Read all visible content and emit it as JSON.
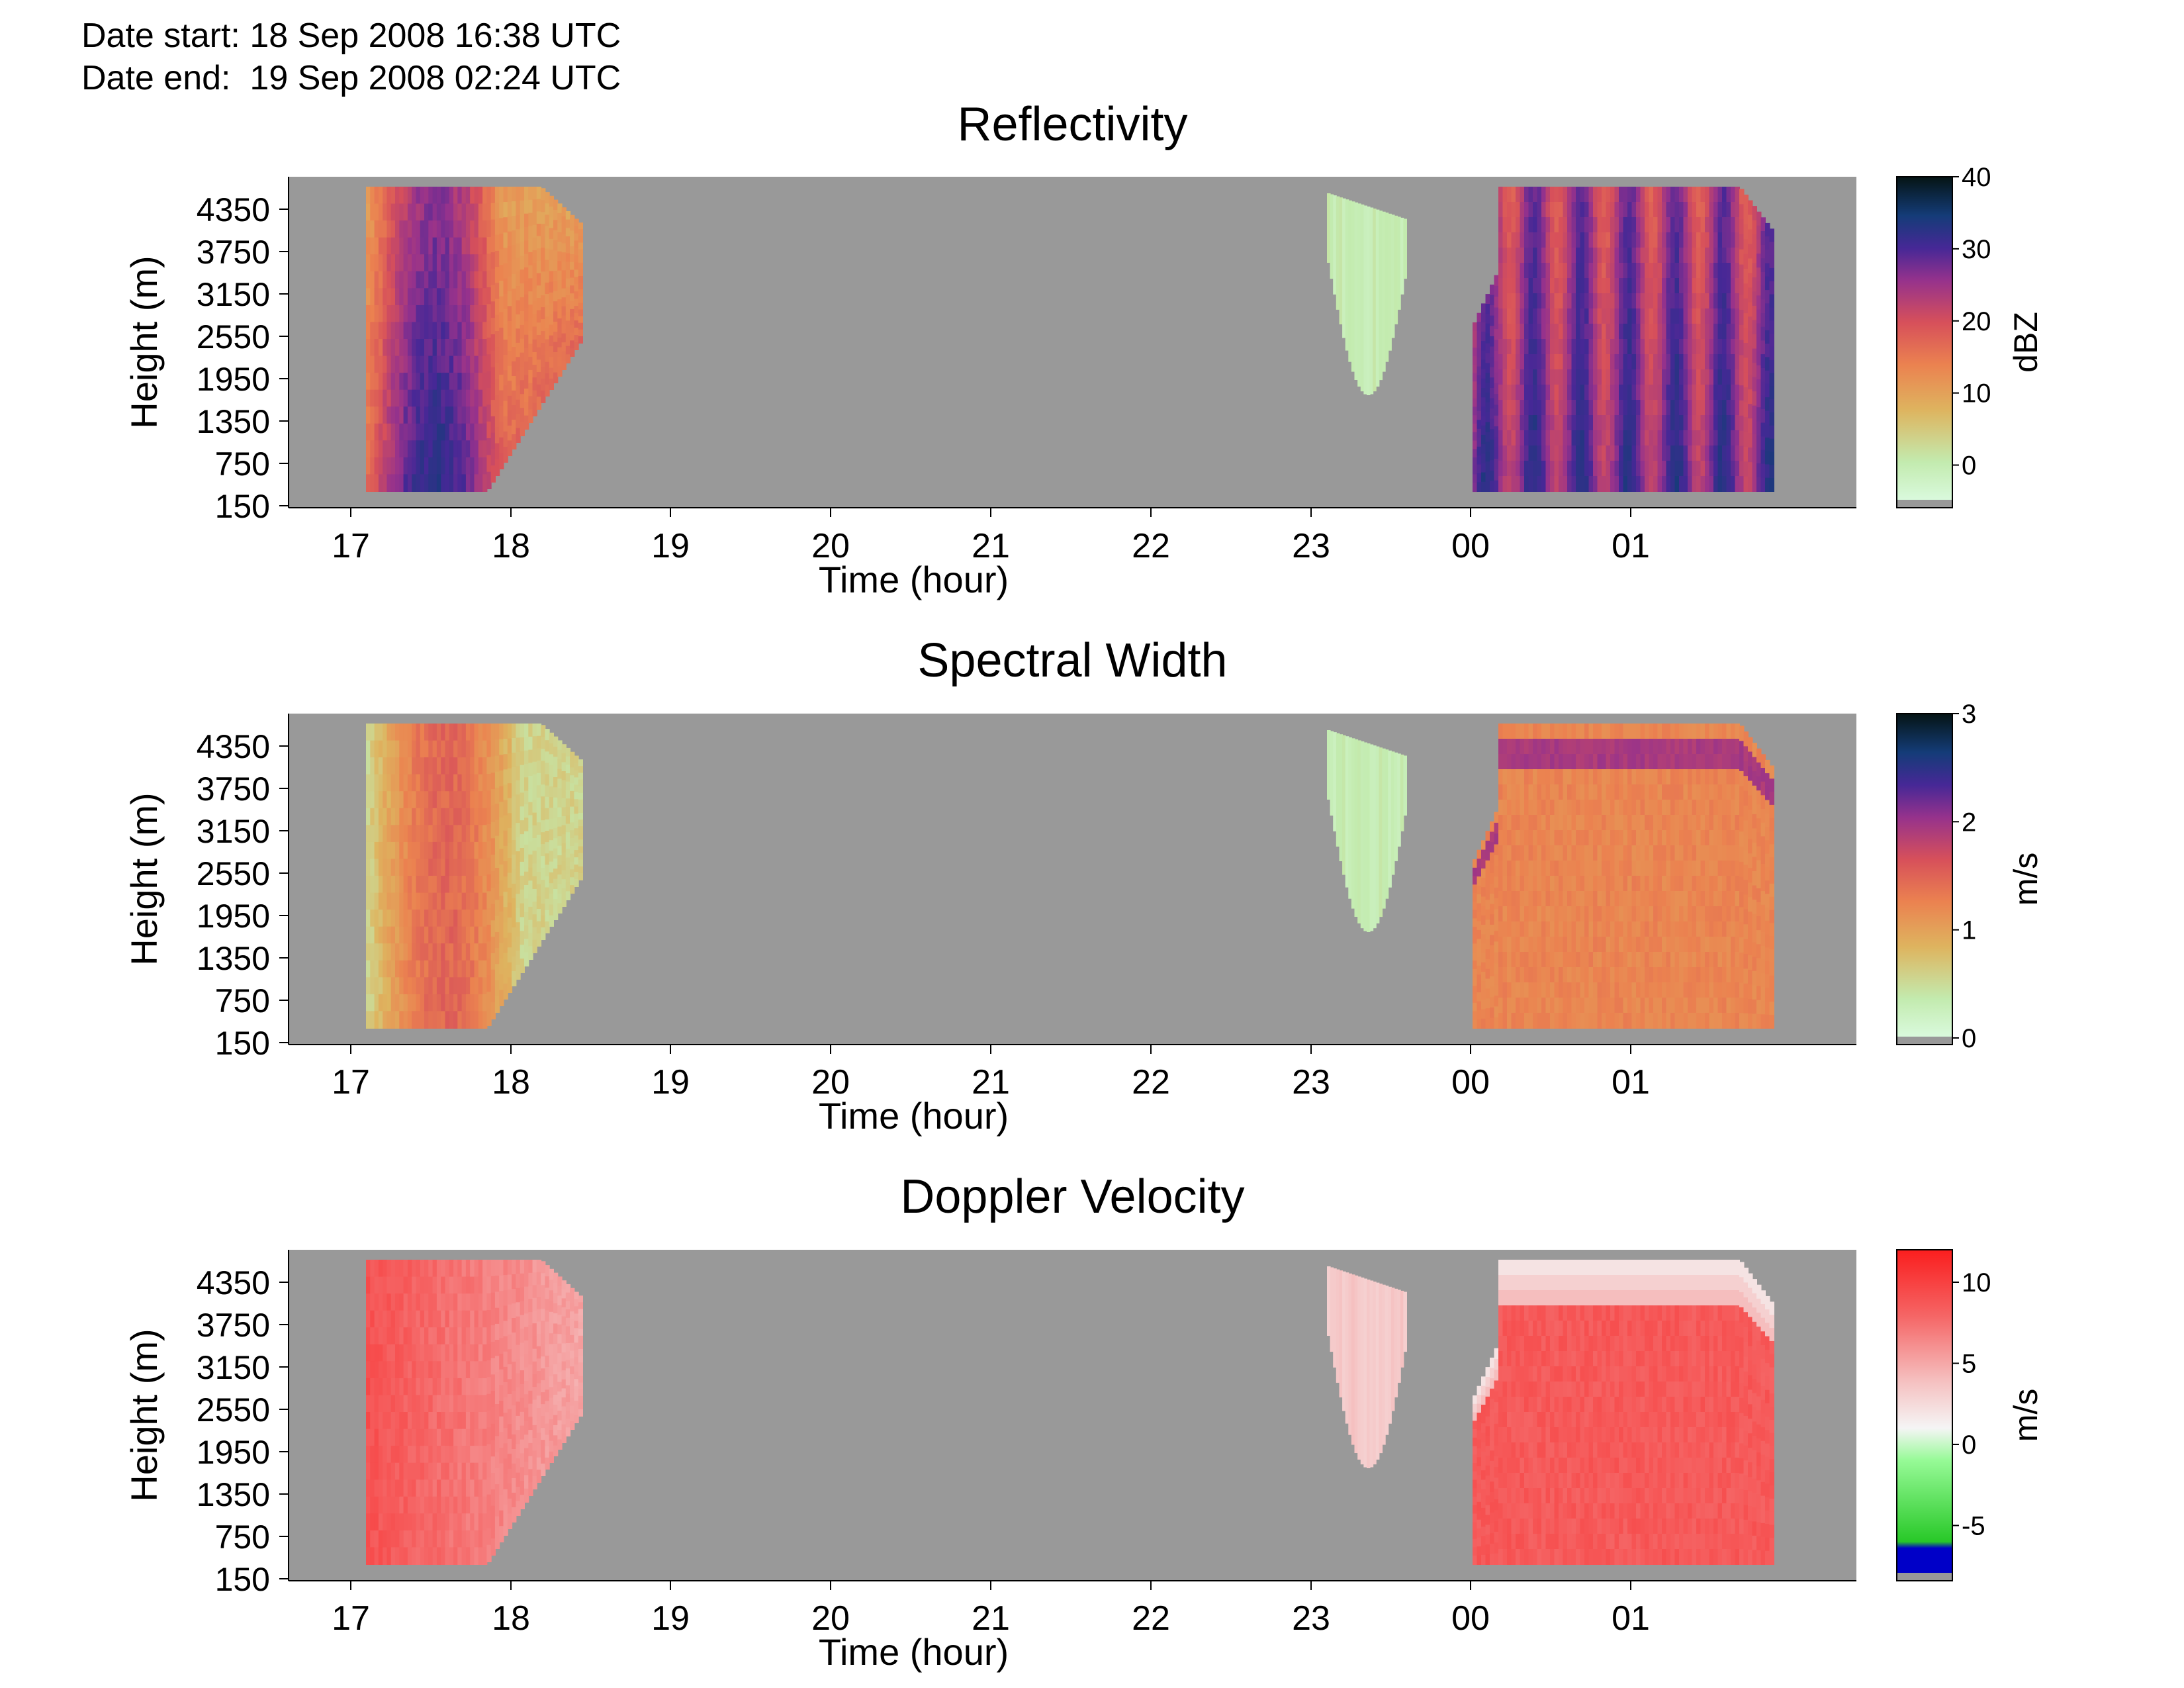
{
  "header": {
    "start_label": "Date start:",
    "start_value": "18 Sep 2008 16:38 UTC",
    "end_label": "Date end:",
    "end_value": "19 Sep 2008 02:24 UTC"
  },
  "chart_data": [
    {
      "type": "heatmap",
      "title": "Reflectivity",
      "xlabel": "Time (hour)",
      "ylabel": "Height (m)",
      "x_ticks": [
        "17",
        "18",
        "19",
        "20",
        "21",
        "22",
        "23",
        "00",
        "01"
      ],
      "y_ticks": [
        "150",
        "750",
        "1350",
        "1950",
        "2550",
        "3150",
        "3750",
        "4350"
      ],
      "colorbar": {
        "label": "dBZ",
        "ticks": [
          "40",
          "30",
          "20",
          "10",
          "0"
        ],
        "range": [
          -5,
          40
        ]
      },
      "no_data_color": "#999999"
    },
    {
      "type": "heatmap",
      "title": "Spectral Width",
      "xlabel": "Time (hour)",
      "ylabel": "Height (m)",
      "x_ticks": [
        "17",
        "18",
        "19",
        "20",
        "21",
        "22",
        "23",
        "00",
        "01"
      ],
      "y_ticks": [
        "150",
        "750",
        "1350",
        "1950",
        "2550",
        "3150",
        "3750",
        "4350"
      ],
      "colorbar": {
        "label": "m/s",
        "ticks": [
          "3",
          "2",
          "1",
          "0"
        ],
        "range": [
          0,
          3
        ]
      },
      "no_data_color": "#999999"
    },
    {
      "type": "heatmap",
      "title": "Doppler Velocity",
      "xlabel": "Time (hour)",
      "ylabel": "Height (m)",
      "x_ticks": [
        "17",
        "18",
        "19",
        "20",
        "21",
        "22",
        "23",
        "00",
        "01"
      ],
      "y_ticks": [
        "150",
        "750",
        "1350",
        "1950",
        "2550",
        "3150",
        "3750",
        "4350"
      ],
      "colorbar": {
        "label": "m/s",
        "ticks": [
          "10",
          "5",
          "0",
          "-5"
        ],
        "range": [
          -8,
          12
        ]
      },
      "no_data_color": "#999999"
    }
  ]
}
